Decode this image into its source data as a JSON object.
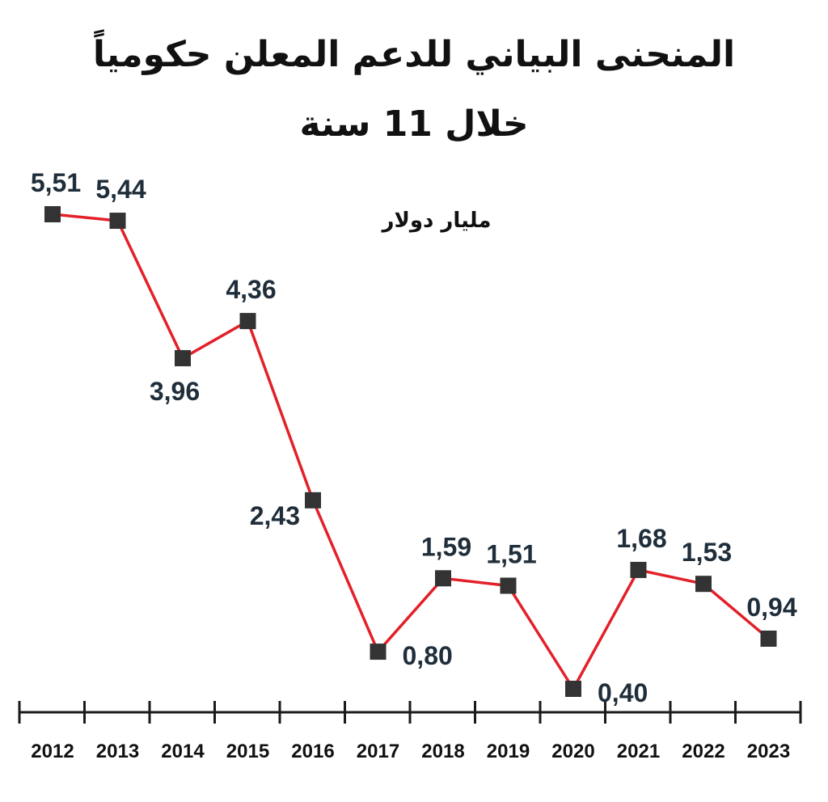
{
  "chart_data": {
    "type": "line",
    "title": "المنحنى البياني للدعم المعلن حكومياً",
    "subtitle": "خلال 11 سنة",
    "unit_label": "مليار دولار",
    "categories": [
      "2012",
      "2013",
      "2014",
      "2015",
      "2016",
      "2017",
      "2018",
      "2019",
      "2020",
      "2021",
      "2022",
      "2023"
    ],
    "values": [
      5.51,
      5.44,
      3.96,
      4.36,
      2.43,
      0.8,
      1.59,
      1.51,
      0.4,
      1.68,
      1.53,
      0.94
    ],
    "value_labels": [
      "5,51",
      "5,44",
      "3,96",
      "4,36",
      "2,43",
      "0,80",
      "1,59",
      "1,51",
      "0,40",
      "1,68",
      "1,53",
      "0,94"
    ],
    "label_side": [
      "above",
      "above",
      "below",
      "above",
      "left",
      "right",
      "above",
      "above",
      "right",
      "above",
      "above",
      "above"
    ],
    "ylim": [
      0.4,
      5.51
    ],
    "grid": false,
    "colors": {
      "line": "#e3202a",
      "marker": "#333333",
      "axis": "#1a1a1a",
      "value_text": "#1f2e3a"
    }
  }
}
